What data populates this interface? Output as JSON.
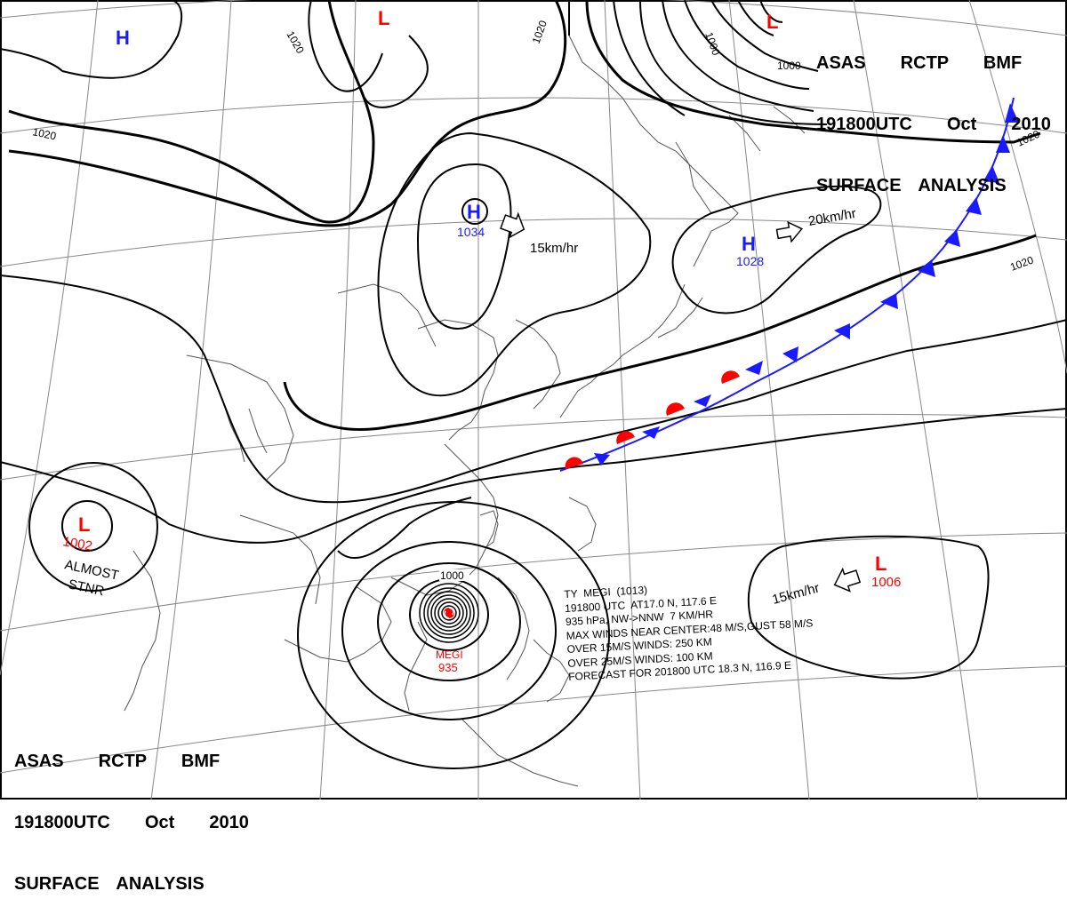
{
  "title_top_right": {
    "line1": "ASAS  RCTP  BMF",
    "line2": "191800UTC  Oct  2010",
    "line3": "SURFACE ANALYSIS"
  },
  "title_bottom_left": {
    "line1": "ASAS  RCTP  BMF",
    "line2": "191800UTC  Oct  2010",
    "line3": "SURFACE ANALYSIS"
  },
  "pressure_centers": [
    {
      "symbol": "H",
      "value": "",
      "color": "#1a1aff"
    },
    {
      "symbol": "L",
      "value": "",
      "color": "#ff0000"
    },
    {
      "symbol": "L",
      "value": "",
      "color": "#ff0000"
    },
    {
      "symbol": "H",
      "value": "1034",
      "color": "#1a1aff"
    },
    {
      "symbol": "H",
      "value": "1028",
      "color": "#1a1aff"
    },
    {
      "symbol": "L",
      "value": "1002",
      "color": "#ff0000"
    },
    {
      "symbol": "L",
      "value": "1006",
      "color": "#ff0000"
    }
  ],
  "movement": {
    "h1034": "15km/hr",
    "h1028": "20km/hr",
    "l1006": "15km/hr",
    "l1002": [
      "ALMOST",
      "STNR"
    ]
  },
  "isobar_labels": [
    "1020",
    "1020",
    "1020",
    "1000",
    "1000",
    "1020",
    "1020",
    "1000"
  ],
  "typhoon": {
    "name": "MEGI",
    "pressure": "935",
    "lines": [
      "TY  MEGI  (1013)",
      "191800 UTC  AT17.0 N, 117.6 E",
      "935 hPa, NW->NNW  7 KM/HR",
      "MAX WINDS NEAR CENTER:48 M/S,GUST 58 M/S",
      "OVER 15M/S WINDS: 250 KM",
      "OVER 25M/S WINDS: 100 KM",
      "FORECAST FOR 201800 UTC 18.3 N, 116.9 E"
    ]
  },
  "colors": {
    "high": "#1a1aff",
    "low": "#ff0000",
    "cold_front": "#1a1aff",
    "warm_front": "#ff0000",
    "isobar": "#000000",
    "coast": "#555555",
    "grid": "#888888"
  }
}
